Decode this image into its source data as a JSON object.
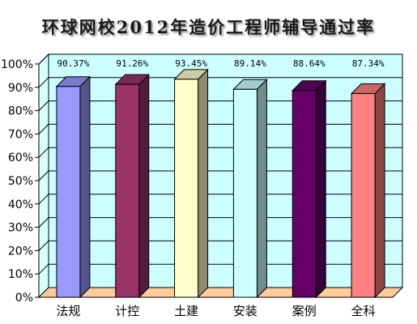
{
  "chart_data": {
    "type": "bar",
    "title": "环球网校2012年造价工程师辅导通过率",
    "categories": [
      "法规",
      "计控",
      "土建",
      "安装",
      "案例",
      "全科"
    ],
    "values": [
      90.37,
      91.26,
      93.45,
      89.14,
      88.64,
      87.34
    ],
    "data_labels": [
      "90.37%",
      "91.26%",
      "93.45%",
      "89.14%",
      "88.64%",
      "87.34%"
    ],
    "ylim": [
      0,
      100
    ],
    "yticks": [
      "0%",
      "10%",
      "20%",
      "30%",
      "40%",
      "50%",
      "60%",
      "70%",
      "80%",
      "90%",
      "100%"
    ],
    "grid": true,
    "legend": "none",
    "bar_colors": [
      "#9999ff",
      "#993366",
      "#ffffcc",
      "#ccffff",
      "#660066",
      "#ff8080"
    ],
    "wall_color": "#ccffff",
    "floor_color": "#ffcc99"
  }
}
